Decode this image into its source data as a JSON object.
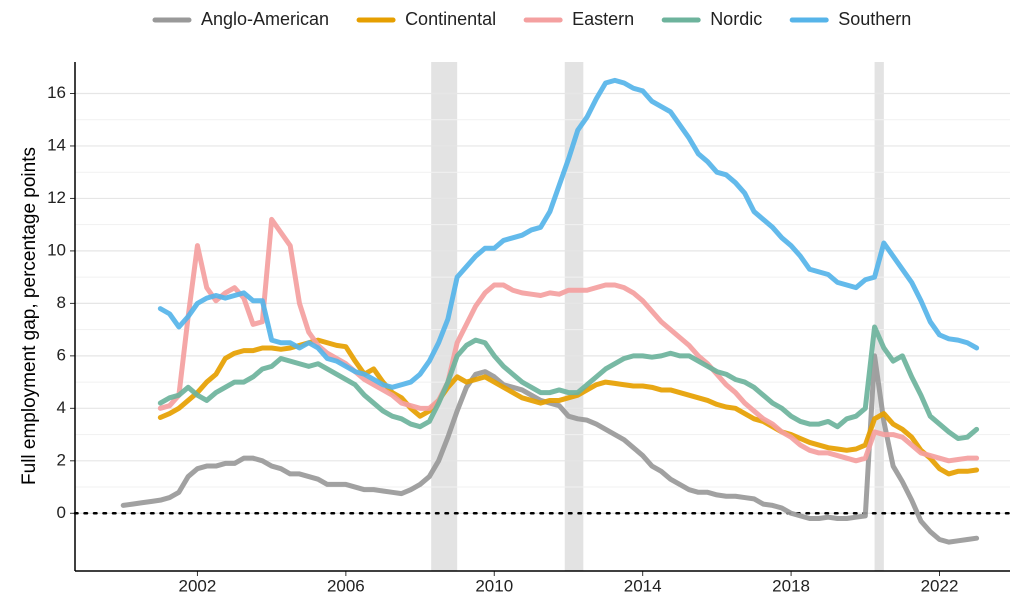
{
  "chart_data": {
    "type": "line",
    "y_label": "Full employment gap, percentage points",
    "x": [
      2000,
      2000.25,
      2000.5,
      2000.75,
      2001,
      2001.25,
      2001.5,
      2001.75,
      2002,
      2002.25,
      2002.5,
      2002.75,
      2003,
      2003.25,
      2003.5,
      2003.75,
      2004,
      2004.25,
      2004.5,
      2004.75,
      2005,
      2005.25,
      2005.5,
      2005.75,
      2006,
      2006.25,
      2006.5,
      2006.75,
      2007,
      2007.25,
      2007.5,
      2007.75,
      2008,
      2008.25,
      2008.5,
      2008.75,
      2009,
      2009.25,
      2009.5,
      2009.75,
      2010,
      2010.25,
      2010.5,
      2010.75,
      2011,
      2011.25,
      2011.5,
      2011.75,
      2012,
      2012.25,
      2012.5,
      2012.75,
      2013,
      2013.25,
      2013.5,
      2013.75,
      2014,
      2014.25,
      2014.5,
      2014.75,
      2015,
      2015.25,
      2015.5,
      2015.75,
      2016,
      2016.25,
      2016.5,
      2016.75,
      2017,
      2017.25,
      2017.5,
      2017.75,
      2018,
      2018.25,
      2018.5,
      2018.75,
      2019,
      2019.25,
      2019.5,
      2019.75,
      2020,
      2020.25,
      2020.5,
      2020.75,
      2021,
      2021.25,
      2021.5,
      2021.75,
      2022,
      2022.25,
      2022.5,
      2022.75,
      2023
    ],
    "series": [
      {
        "name": "Anglo-American",
        "color": "#999999",
        "values": [
          0.3,
          0.35,
          0.4,
          0.45,
          0.5,
          0.6,
          0.8,
          1.4,
          1.7,
          1.8,
          1.8,
          1.9,
          1.9,
          2.1,
          2.1,
          2.0,
          1.8,
          1.7,
          1.5,
          1.5,
          1.4,
          1.3,
          1.1,
          1.1,
          1.1,
          1.0,
          0.9,
          0.9,
          0.85,
          0.8,
          0.75,
          0.9,
          1.1,
          1.4,
          2.0,
          2.9,
          3.9,
          4.8,
          5.3,
          5.4,
          5.2,
          4.9,
          4.8,
          4.7,
          4.5,
          4.3,
          4.2,
          4.1,
          3.7,
          3.6,
          3.55,
          3.4,
          3.2,
          3.0,
          2.8,
          2.5,
          2.2,
          1.8,
          1.6,
          1.3,
          1.1,
          0.9,
          0.8,
          0.8,
          0.7,
          0.65,
          0.65,
          0.6,
          0.55,
          0.35,
          0.3,
          0.2,
          0.0,
          -0.1,
          -0.2,
          -0.2,
          -0.15,
          -0.2,
          -0.2,
          -0.15,
          -0.1,
          6.0,
          3.5,
          1.8,
          1.2,
          0.5,
          -0.3,
          -0.7,
          -1.0,
          -1.1,
          -1.05,
          -1.0,
          -0.95
        ]
      },
      {
        "name": "Continental",
        "color": "#E69F00",
        "values": [
          null,
          null,
          null,
          null,
          3.65,
          3.8,
          4.0,
          4.3,
          4.6,
          5.0,
          5.3,
          5.9,
          6.1,
          6.2,
          6.2,
          6.3,
          6.3,
          6.25,
          6.3,
          6.4,
          6.5,
          6.6,
          6.5,
          6.4,
          6.35,
          5.8,
          5.3,
          5.5,
          5.0,
          4.6,
          4.4,
          4.0,
          3.7,
          3.9,
          4.3,
          4.8,
          5.2,
          5.0,
          5.1,
          5.2,
          5.0,
          4.8,
          4.6,
          4.4,
          4.3,
          4.2,
          4.3,
          4.3,
          4.4,
          4.5,
          4.7,
          4.9,
          5.0,
          4.95,
          4.9,
          4.85,
          4.85,
          4.8,
          4.7,
          4.7,
          4.6,
          4.5,
          4.4,
          4.3,
          4.15,
          4.05,
          4.0,
          3.8,
          3.6,
          3.5,
          3.3,
          3.1,
          3.0,
          2.85,
          2.7,
          2.6,
          2.5,
          2.45,
          2.4,
          2.45,
          2.6,
          3.6,
          3.8,
          3.4,
          3.2,
          2.9,
          2.4,
          2.1,
          1.7,
          1.5,
          1.6,
          1.6,
          1.65
        ]
      },
      {
        "name": "Eastern",
        "color": "#F4A0A0",
        "values": [
          null,
          null,
          null,
          null,
          4.0,
          4.1,
          4.5,
          7.5,
          10.2,
          8.6,
          8.1,
          8.4,
          8.6,
          8.2,
          7.2,
          7.3,
          11.2,
          10.7,
          10.2,
          8.0,
          6.9,
          6.4,
          6.1,
          5.9,
          5.7,
          5.4,
          5.1,
          4.9,
          4.7,
          4.5,
          4.2,
          4.1,
          4.0,
          4.0,
          4.3,
          5.0,
          6.5,
          7.2,
          7.9,
          8.4,
          8.7,
          8.7,
          8.5,
          8.4,
          8.35,
          8.3,
          8.4,
          8.35,
          8.5,
          8.5,
          8.5,
          8.6,
          8.7,
          8.7,
          8.6,
          8.4,
          8.1,
          7.7,
          7.3,
          7.0,
          6.7,
          6.4,
          6.0,
          5.7,
          5.3,
          4.9,
          4.6,
          4.2,
          3.9,
          3.6,
          3.4,
          3.1,
          2.9,
          2.6,
          2.4,
          2.3,
          2.3,
          2.2,
          2.1,
          2.0,
          2.1,
          3.1,
          3.0,
          3.0,
          2.9,
          2.6,
          2.3,
          2.2,
          2.1,
          2.0,
          2.05,
          2.1,
          2.1
        ]
      },
      {
        "name": "Nordic",
        "color": "#6DB39C",
        "values": [
          null,
          null,
          null,
          null,
          4.2,
          4.4,
          4.5,
          4.8,
          4.5,
          4.3,
          4.6,
          4.8,
          5.0,
          5.0,
          5.2,
          5.5,
          5.6,
          5.9,
          5.8,
          5.7,
          5.6,
          5.7,
          5.5,
          5.3,
          5.1,
          4.9,
          4.5,
          4.2,
          3.9,
          3.7,
          3.6,
          3.4,
          3.3,
          3.5,
          4.2,
          5.0,
          6.0,
          6.4,
          6.6,
          6.5,
          6.0,
          5.6,
          5.3,
          5.0,
          4.8,
          4.6,
          4.6,
          4.7,
          4.6,
          4.6,
          4.9,
          5.2,
          5.5,
          5.7,
          5.9,
          6.0,
          6.0,
          5.95,
          6.0,
          6.1,
          6.0,
          6.0,
          5.8,
          5.6,
          5.4,
          5.3,
          5.1,
          5.0,
          4.8,
          4.5,
          4.2,
          4.0,
          3.7,
          3.5,
          3.4,
          3.4,
          3.5,
          3.3,
          3.6,
          3.7,
          4.0,
          7.1,
          6.3,
          5.8,
          6.0,
          5.2,
          4.5,
          3.7,
          3.4,
          3.1,
          2.85,
          2.9,
          3.2
        ]
      },
      {
        "name": "Southern",
        "color": "#56B4E9",
        "values": [
          null,
          null,
          null,
          null,
          7.8,
          7.6,
          7.1,
          7.5,
          8.0,
          8.2,
          8.3,
          8.2,
          8.3,
          8.4,
          8.1,
          8.1,
          6.6,
          6.5,
          6.5,
          6.3,
          6.5,
          6.3,
          5.9,
          5.8,
          5.6,
          5.4,
          5.3,
          5.1,
          4.9,
          4.8,
          4.9,
          5.0,
          5.3,
          5.8,
          6.5,
          7.4,
          9.0,
          9.4,
          9.8,
          10.1,
          10.1,
          10.4,
          10.5,
          10.6,
          10.8,
          10.9,
          11.5,
          12.5,
          13.5,
          14.6,
          15.1,
          15.8,
          16.4,
          16.5,
          16.4,
          16.2,
          16.1,
          15.7,
          15.5,
          15.3,
          14.8,
          14.3,
          13.7,
          13.4,
          13.0,
          12.9,
          12.6,
          12.2,
          11.5,
          11.2,
          10.9,
          10.5,
          10.2,
          9.8,
          9.3,
          9.2,
          9.1,
          8.8,
          8.7,
          8.6,
          8.9,
          9.0,
          10.3,
          9.8,
          9.3,
          8.8,
          8.1,
          7.3,
          6.8,
          6.65,
          6.6,
          6.5,
          6.3
        ]
      }
    ],
    "xlim": [
      1998.7,
      2023.9
    ],
    "ylim": [
      -2.2,
      17.2
    ],
    "xticks": [
      2002,
      2006,
      2010,
      2014,
      2018,
      2022
    ],
    "yticks": [
      0,
      2,
      4,
      6,
      8,
      10,
      12,
      14,
      16
    ],
    "grid": true,
    "legend": "top",
    "hline": 0,
    "recessions": [
      [
        2008.3,
        2009.0
      ],
      [
        2011.9,
        2012.4
      ],
      [
        2020.25,
        2020.5
      ]
    ],
    "recession_color": "#e3e3e3"
  }
}
